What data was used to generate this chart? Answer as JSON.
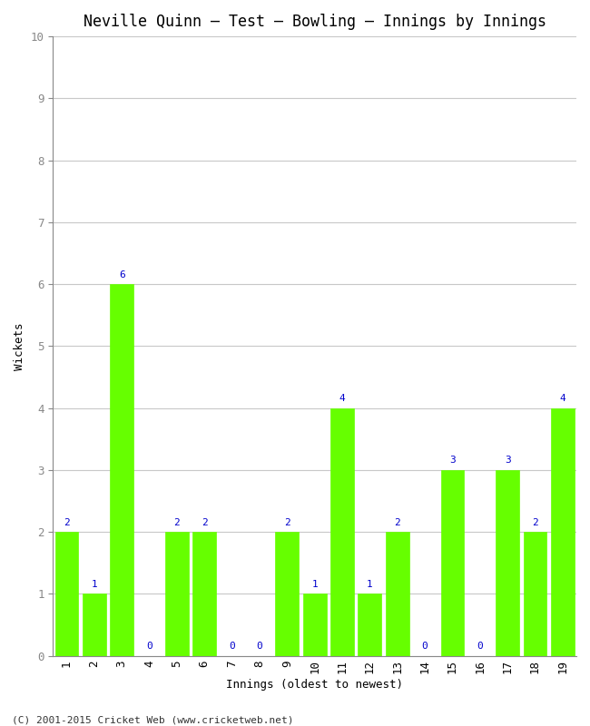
{
  "title": "Neville Quinn – Test – Bowling – Innings by Innings",
  "xlabel": "Innings (oldest to newest)",
  "ylabel": "Wickets",
  "innings": [
    1,
    2,
    3,
    4,
    5,
    6,
    7,
    8,
    9,
    10,
    11,
    12,
    13,
    14,
    15,
    16,
    17,
    18,
    19
  ],
  "wickets": [
    2,
    1,
    6,
    0,
    2,
    2,
    0,
    0,
    2,
    1,
    4,
    1,
    2,
    0,
    3,
    0,
    3,
    2,
    4
  ],
  "bar_color": "#66ff00",
  "bar_edge_color": "#66ff00",
  "label_color": "#0000cc",
  "background_color": "#ffffff",
  "grid_color": "#c8c8c8",
  "ylim": [
    0,
    10
  ],
  "yticks": [
    0,
    1,
    2,
    3,
    4,
    5,
    6,
    7,
    8,
    9,
    10
  ],
  "title_fontsize": 12,
  "axis_label_fontsize": 9,
  "tick_fontsize": 9,
  "label_fontsize": 8,
  "footer": "(C) 2001-2015 Cricket Web (www.cricketweb.net)",
  "bar_width": 0.85
}
